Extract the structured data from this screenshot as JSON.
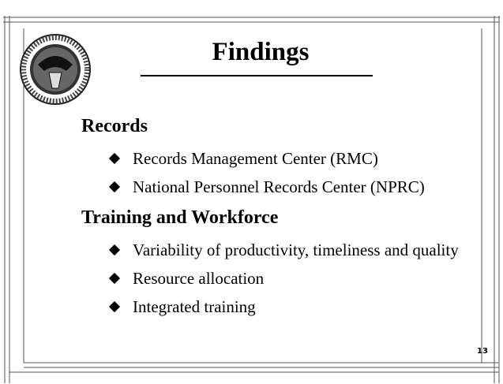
{
  "title": "Findings",
  "sections": [
    {
      "heading": "Records",
      "items": [
        "Records Management Center (RMC)",
        "National Personnel Records Center (NPRC)"
      ]
    },
    {
      "heading": "Training and Workforce",
      "items": [
        "Variability of productivity, timeliness and quality",
        "Resource allocation",
        "Integrated training"
      ]
    }
  ],
  "page_number": "13"
}
